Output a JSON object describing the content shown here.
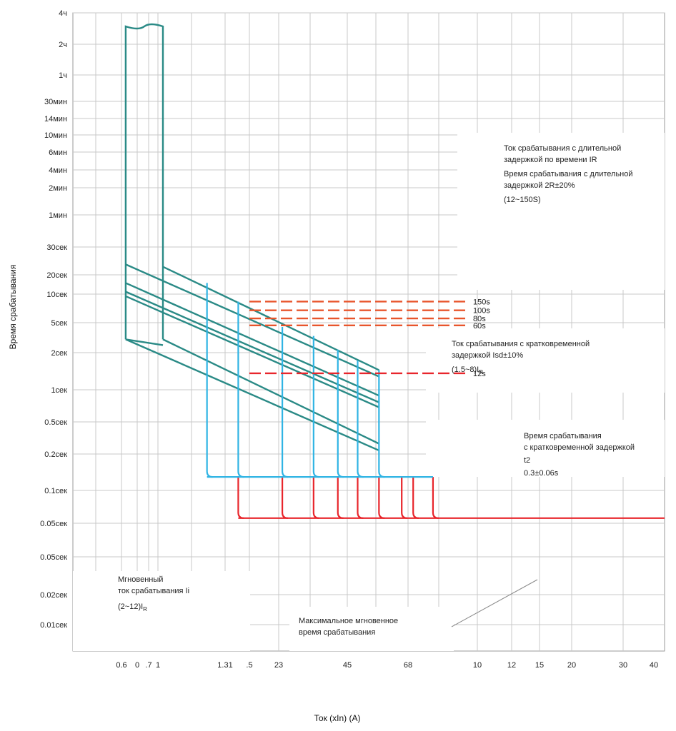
{
  "chart_data": {
    "type": "line",
    "title": "",
    "xlabel": "Ток (xIn) (A)",
    "ylabel": "Время срабатывания",
    "x_scale": "log",
    "y_scale": "log",
    "grid": true,
    "legend": "none",
    "x_tick_labels": [
      "0.6",
      "0",
      ".7",
      "1",
      "1.31",
      ".5",
      "23",
      "45",
      "68",
      "10",
      "12",
      "15",
      "20",
      "30",
      "40"
    ],
    "y_tick_labels": [
      "4ч",
      "2ч",
      "1ч",
      "30мин",
      "14мин",
      "10мин",
      "6мин",
      "4мин",
      "2мин",
      "1мин",
      "30сек",
      "20сек",
      "10сек",
      "5сек",
      "2сек",
      "1сек",
      "0.5сек",
      "0.2сек",
      "0.1сек",
      "0.05сек",
      "0.05сек",
      "0.02сек",
      "0.01сек"
    ],
    "colors": {
      "long_delay": "#2a8a86",
      "short_delay": "#30b4e4",
      "instantaneous": "#e8262c",
      "long_time_setting": "#e8552c",
      "short_time_setting": "#e8262c",
      "leader": "#888888"
    },
    "series": [
      {
        "id": "long-delay-envelope",
        "x_unit": "xIn",
        "y_unit": "s",
        "points": [
          [
            0.71,
            9000
          ],
          [
            0.71,
            22
          ],
          [
            1.0,
            22
          ],
          [
            1.0,
            9000
          ]
        ]
      },
      {
        "id": "long-delay-bands",
        "x_unit": "xIn",
        "y_unit": "s",
        "lines": [
          [
            [
              0.71,
              360
            ],
            [
              7.3,
              5.5
            ]
          ],
          [
            [
              0.71,
              180
            ],
            [
              7.3,
              2.7
            ]
          ],
          [
            [
              0.71,
              130
            ],
            [
              7.3,
              2.1
            ]
          ],
          [
            [
              0.71,
              110
            ],
            [
              7.3,
              1.75
            ]
          ],
          [
            [
              0.71,
              22
            ],
            [
              7.3,
              0.35
            ]
          ],
          [
            [
              1.0,
              330
            ],
            [
              7.3,
              7.0
            ]
          ],
          [
            [
              1.0,
              22
            ],
            [
              7.3,
              0.45
            ]
          ]
        ]
      },
      {
        "id": "short-delay-curves",
        "x_unit": "xIn",
        "y_unit": "s",
        "drop_x": [
          1.5,
          2.0,
          3.0,
          4.0,
          5.0,
          6.0,
          7.3
        ],
        "drop_top_y": [
          180,
          90,
          35,
          25,
          15,
          10,
          7.0
        ],
        "time_y": 0.13,
        "end_x": 12.0
      },
      {
        "id": "instantaneous-curves",
        "x_unit": "xIn",
        "y_unit": "s",
        "drop_x": [
          2.0,
          3.0,
          4.0,
          5.0,
          6.0,
          7.3,
          9.0,
          10.0,
          12.0
        ],
        "top_y": 0.13,
        "bottom_y": 0.028,
        "end_x": 50.0
      }
    ],
    "settings": [
      {
        "label": "150s",
        "y": 90
      },
      {
        "label": "100s",
        "y": 65
      },
      {
        "label": "80s",
        "y": 48
      },
      {
        "label": "60s",
        "y": 37
      },
      {
        "label": "12s",
        "y": 6.2
      }
    ],
    "annotations": {
      "long_delay": {
        "line1": "Ток срабатывания с длительной",
        "line2a": "задержкой по времени I",
        "line2b": "R",
        "line3": "Время срабатывания с длительной",
        "line4": "задержкой 2R±20%",
        "line5": "(12~150S)"
      },
      "short_delay_current": {
        "line1": "Ток срабатывания с кратковременной",
        "line2": "задержкой Isd±10%",
        "range": "(1.5~8)I",
        "range_sub": "R"
      },
      "short_delay_time": {
        "line1": "Время срабатывания",
        "line2": "с кратковременной задержкой",
        "line3": "t2",
        "line4": "0.3±0.06s"
      },
      "instantaneous": {
        "line1": "Мгновенный",
        "line2": "ток срабатывания Ii",
        "range": "(2~12)I",
        "range_sub": "R"
      },
      "max_time": {
        "line1": "Максимальное мгновенное",
        "line2": "время срабатывания"
      }
    }
  }
}
